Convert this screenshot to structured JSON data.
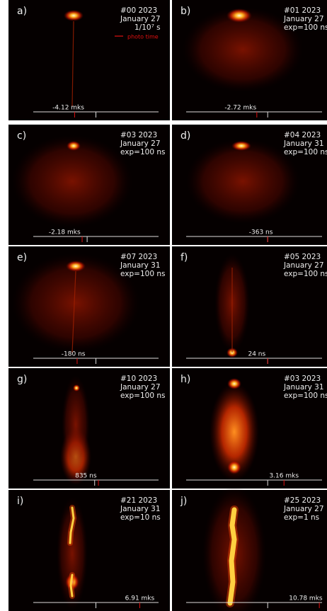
{
  "panels": [
    {
      "label": "a)",
      "lines": [
        "#00 2023",
        "January 27",
        "1/10⁷ s"
      ],
      "legend": "photo time",
      "time": "-4.12 mks"
    },
    {
      "label": "b)",
      "lines": [
        "#01 2023",
        "January 27",
        "exp=100 ns"
      ],
      "time": "-2.72 mks"
    },
    {
      "label": "c)",
      "lines": [
        "#03 2023",
        "January 27",
        "exp=100 ns"
      ],
      "time": "-2.18 mks"
    },
    {
      "label": "d)",
      "lines": [
        "#04 2023",
        "January 31",
        "exp=100 ns"
      ],
      "time": "-363 ns"
    },
    {
      "label": "e)",
      "lines": [
        "#07 2023",
        "January 31",
        "exp=100 ns"
      ],
      "time": "-180 ns"
    },
    {
      "label": "f)",
      "lines": [
        "#05 2023",
        "January 27",
        "exp=100 ns"
      ],
      "time": "24 ns"
    },
    {
      "label": "g)",
      "lines": [
        "#10 2023",
        "January 27",
        "exp=100 ns"
      ],
      "time": "835 ns"
    },
    {
      "label": "h)",
      "lines": [
        "#03 2023",
        "January 31",
        "exp=100 ns"
      ],
      "time": "3.16 mks"
    },
    {
      "label": "i)",
      "lines": [
        "#21 2023",
        "January 31",
        "exp=10 ns"
      ],
      "time": "6.91 mks"
    },
    {
      "label": "j)",
      "lines": [
        "#25 2023",
        "January 27",
        "exp=1 ns"
      ],
      "time": "10.78 mks"
    }
  ]
}
